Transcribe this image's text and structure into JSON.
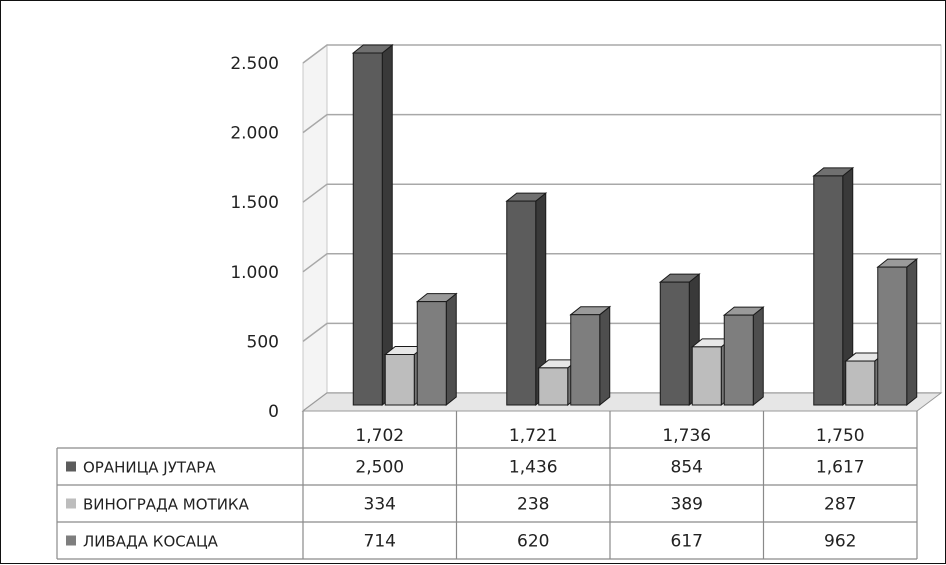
{
  "chart_data": {
    "type": "bar",
    "categories": [
      "1,702",
      "1,721",
      "1,736",
      "1,750"
    ],
    "series": [
      {
        "name": "ОРАНИЦА ЈУТАРА",
        "values": [
          2500,
          1436,
          854,
          1617
        ],
        "labels": [
          "2,500",
          "1,436",
          "854",
          "1,617"
        ]
      },
      {
        "name": "ВИНОГРАДА МОТИКА",
        "values": [
          334,
          238,
          389,
          287
        ],
        "labels": [
          "334",
          "238",
          "389",
          "287"
        ]
      },
      {
        "name": "ЛИВАДА КОСАЦА",
        "values": [
          714,
          620,
          617,
          962
        ],
        "labels": [
          "714",
          "620",
          "617",
          "962"
        ]
      }
    ],
    "yticks": [
      {
        "value": 0,
        "label": "0"
      },
      {
        "value": 500,
        "label": "500"
      },
      {
        "value": 1000,
        "label": "1.000"
      },
      {
        "value": 1500,
        "label": "1.500"
      },
      {
        "value": 2000,
        "label": "2.000"
      },
      {
        "value": 2500,
        "label": "2.500"
      }
    ],
    "ylim": [
      0,
      2500
    ],
    "grid": true,
    "legend": "data table",
    "colors": [
      "#5c5c5c",
      "#bdbdbd",
      "#7e7e7e"
    ]
  }
}
